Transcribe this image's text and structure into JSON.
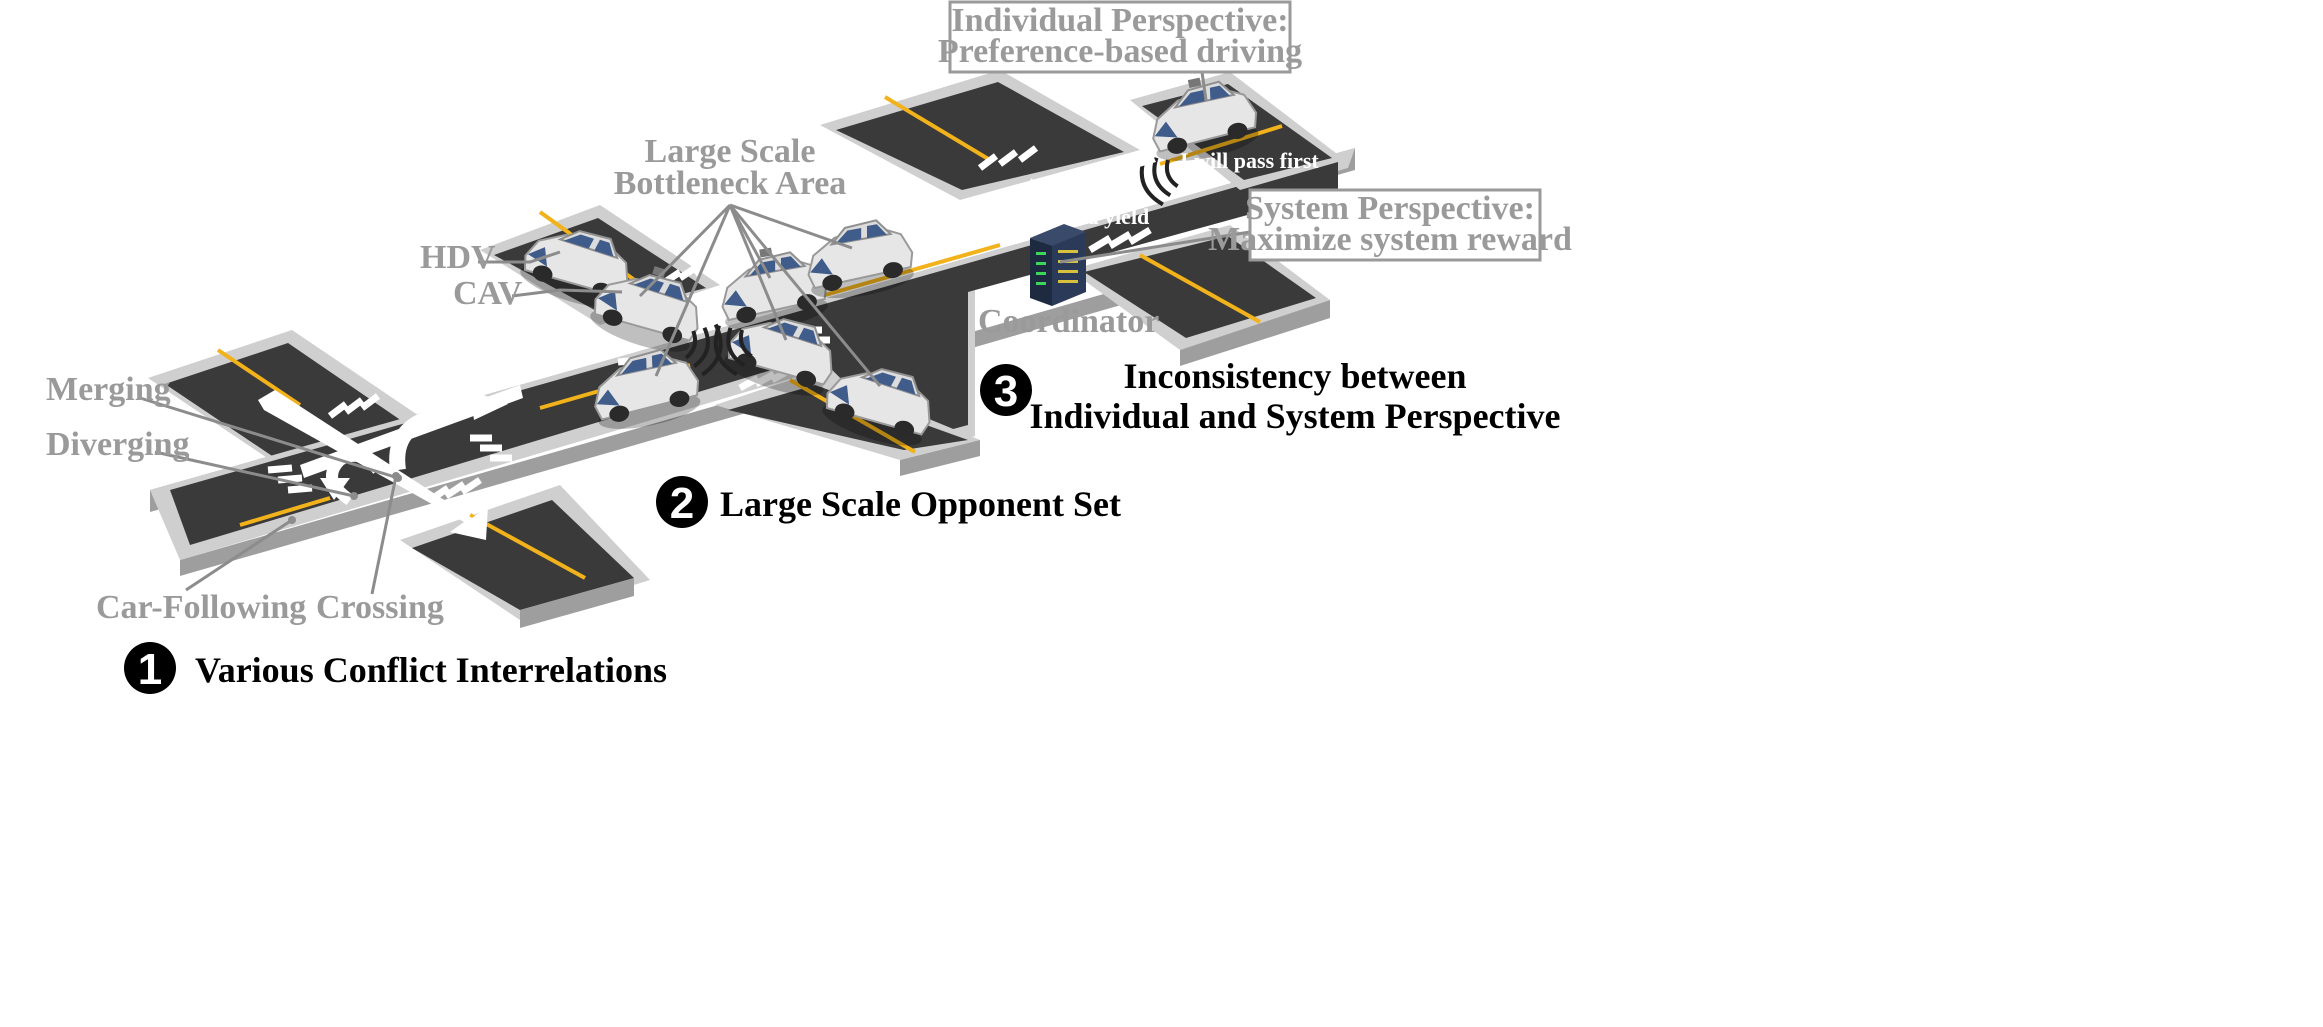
{
  "labels": {
    "merging": "Merging",
    "diverging": "Diverging",
    "car_following": "Car-Following",
    "crossing": "Crossing",
    "hdv": "HDV",
    "cav": "CAV",
    "bottleneck_line1": "Large Scale",
    "bottleneck_line2": "Bottleneck Area",
    "coordinator": "Coordinator",
    "i_will_pass": "I will pass first",
    "you_should_yield": "You should yield"
  },
  "boxes": {
    "individual_line1": "Individual Perspective:",
    "individual_line2": "Preference-based driving",
    "system_line1": "System Perspective:",
    "system_line2": "Maximize system reward"
  },
  "challenges": [
    {
      "num": "1",
      "text": "Various Conflict Interrelations"
    },
    {
      "num": "2",
      "text": "Large Scale Opponent Set"
    },
    {
      "num": "3",
      "line1": "Inconsistency between",
      "line2": "Individual and System Perspective"
    }
  ],
  "colors": {
    "road": "#3a3a3a",
    "curb": "#cfcfcf",
    "curb_side": "#9e9e9e",
    "lane_yellow": "#f2b21b",
    "label_gray": "#9a9a9a",
    "leader_gray": "#8c8c8c",
    "car_body": "#e4e4e4",
    "car_glass": "#3f5c8a"
  }
}
